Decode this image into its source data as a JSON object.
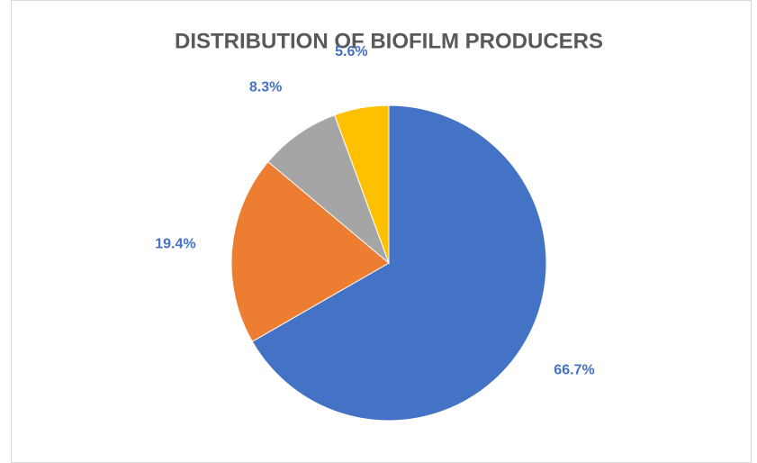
{
  "chart_data": {
    "type": "pie",
    "title": "DISTRIBUTION OF BIOFILM PRODUCERS",
    "values": [
      66.7,
      19.4,
      8.3,
      5.6
    ],
    "value_labels": [
      "66.7%",
      "19.4%",
      "8.3%",
      "5.6%"
    ],
    "colors": [
      "#4472c4",
      "#ed7d31",
      "#a5a5a5",
      "#ffc000"
    ],
    "label_color": "#4472c4"
  }
}
